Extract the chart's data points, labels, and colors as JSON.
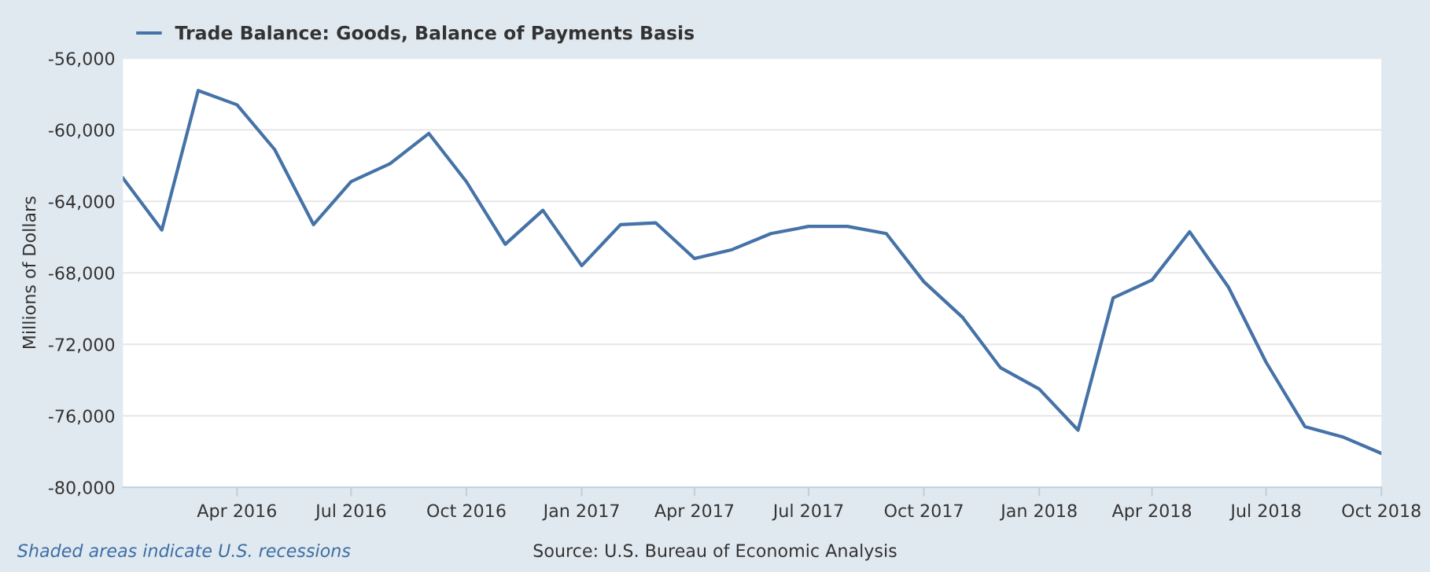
{
  "chart_data": {
    "type": "line",
    "ylabel": "Millions of Dollars",
    "annotations": [
      "Shaded areas indicate U.S. recessions",
      "Source: U.S. Bureau of Economic Analysis"
    ],
    "x": [
      "2016-01",
      "2016-02",
      "2016-03",
      "2016-04",
      "2016-05",
      "2016-06",
      "2016-07",
      "2016-08",
      "2016-09",
      "2016-10",
      "2016-11",
      "2016-12",
      "2017-01",
      "2017-02",
      "2017-03",
      "2017-04",
      "2017-05",
      "2017-06",
      "2017-07",
      "2017-08",
      "2017-09",
      "2017-10",
      "2017-11",
      "2017-12",
      "2018-01",
      "2018-02",
      "2018-03",
      "2018-04",
      "2018-05",
      "2018-06",
      "2018-07",
      "2018-08",
      "2018-09",
      "2018-10"
    ],
    "series": [
      {
        "name": "Trade Balance: Goods, Balance of Payments Basis",
        "color": "#4572a7",
        "values": [
          -62700,
          -65600,
          -57800,
          -58600,
          -61100,
          -65300,
          -62900,
          -61900,
          -60200,
          -62900,
          -66400,
          -64500,
          -67600,
          -65300,
          -65200,
          -67200,
          -66700,
          -65800,
          -65400,
          -65400,
          -65800,
          -68500,
          -70500,
          -73300,
          -74500,
          -76800,
          -69400,
          -68400,
          -65700,
          -68800,
          -73000,
          -76600,
          -77200,
          -78100
        ]
      }
    ],
    "xlim": [
      "2016-01",
      "2018-10"
    ],
    "xticks": [
      {
        "value": "2016-04",
        "label": "Apr 2016"
      },
      {
        "value": "2016-07",
        "label": "Jul 2016"
      },
      {
        "value": "2016-10",
        "label": "Oct 2016"
      },
      {
        "value": "2017-01",
        "label": "Jan 2017"
      },
      {
        "value": "2017-04",
        "label": "Apr 2017"
      },
      {
        "value": "2017-07",
        "label": "Jul 2017"
      },
      {
        "value": "2017-10",
        "label": "Oct 2017"
      },
      {
        "value": "2018-01",
        "label": "Jan 2018"
      },
      {
        "value": "2018-04",
        "label": "Apr 2018"
      },
      {
        "value": "2018-07",
        "label": "Jul 2018"
      },
      {
        "value": "2018-10",
        "label": "Oct 2018"
      }
    ],
    "ylim": [
      -80000,
      -56000
    ],
    "yticks": [
      {
        "value": -80000,
        "label": "-80,000"
      },
      {
        "value": -76000,
        "label": "-76,000"
      },
      {
        "value": -72000,
        "label": "-72,000"
      },
      {
        "value": -68000,
        "label": "-68,000"
      },
      {
        "value": -64000,
        "label": "-64,000"
      },
      {
        "value": -60000,
        "label": "-60,000"
      },
      {
        "value": -56000,
        "label": "-56,000"
      }
    ],
    "grid": "y",
    "legend": "top left",
    "line_style": "solid",
    "marker": "none"
  }
}
